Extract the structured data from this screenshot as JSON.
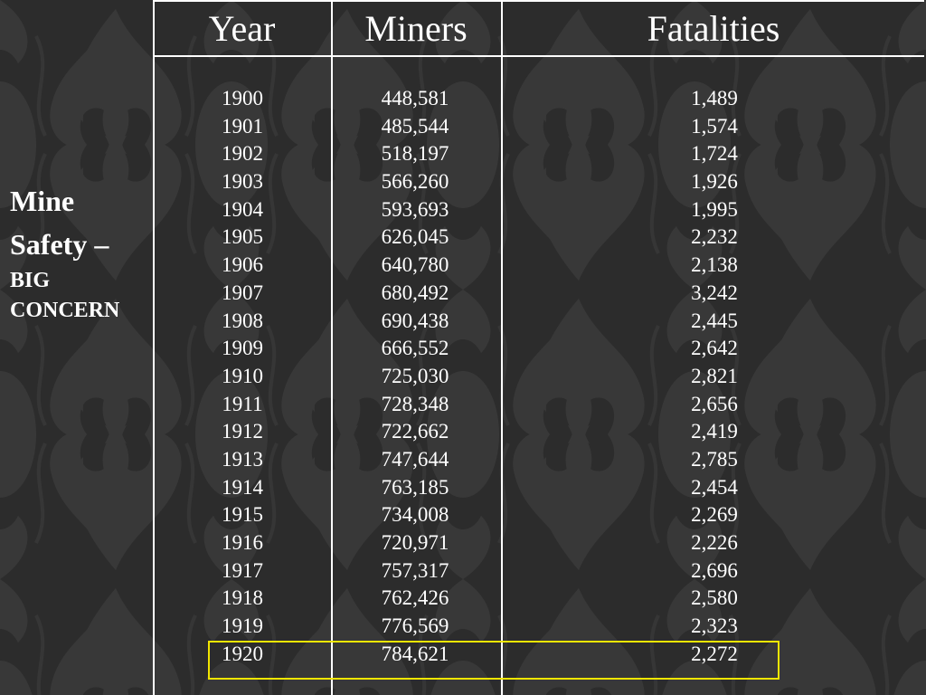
{
  "slide": {
    "title_line1": "Mine",
    "title_line2": "Safety –",
    "title_line3": "BIG",
    "title_line4": "CONCERN"
  },
  "table": {
    "headers": [
      "Year",
      "Miners",
      "Fatalities"
    ],
    "rows": [
      {
        "year": "1900",
        "miners": "448,581",
        "fatalities": "1,489"
      },
      {
        "year": "1901",
        "miners": "485,544",
        "fatalities": "1,574"
      },
      {
        "year": "1902",
        "miners": "518,197",
        "fatalities": "1,724"
      },
      {
        "year": "1903",
        "miners": "566,260",
        "fatalities": "1,926"
      },
      {
        "year": "1904",
        "miners": "593,693",
        "fatalities": "1,995"
      },
      {
        "year": "1905",
        "miners": "626,045",
        "fatalities": "2,232"
      },
      {
        "year": "1906",
        "miners": "640,780",
        "fatalities": "2,138"
      },
      {
        "year": "1907",
        "miners": "680,492",
        "fatalities": "3,242"
      },
      {
        "year": "1908",
        "miners": "690,438",
        "fatalities": "2,445"
      },
      {
        "year": "1909",
        "miners": "666,552",
        "fatalities": "2,642"
      },
      {
        "year": "1910",
        "miners": "725,030",
        "fatalities": "2,821"
      },
      {
        "year": "1911",
        "miners": "728,348",
        "fatalities": "2,656"
      },
      {
        "year": "1912",
        "miners": "722,662",
        "fatalities": "2,419"
      },
      {
        "year": "1913",
        "miners": "747,644",
        "fatalities": "2,785"
      },
      {
        "year": "1914",
        "miners": "763,185",
        "fatalities": "2,454"
      },
      {
        "year": "1915",
        "miners": "734,008",
        "fatalities": "2,269"
      },
      {
        "year": "1916",
        "miners": "720,971",
        "fatalities": "2,226"
      },
      {
        "year": "1917",
        "miners": "757,317",
        "fatalities": "2,696"
      },
      {
        "year": "1918",
        "miners": "762,426",
        "fatalities": "2,580"
      },
      {
        "year": "1919",
        "miners": "776,569",
        "fatalities": "2,323"
      },
      {
        "year": "1920",
        "miners": "784,621",
        "fatalities": "2,272"
      }
    ],
    "highlighted_year": "1920"
  },
  "colors": {
    "background": "#2c2c2c",
    "pattern": "#3a3a3a",
    "text": "#ffffff",
    "highlight": "#f2e600"
  }
}
